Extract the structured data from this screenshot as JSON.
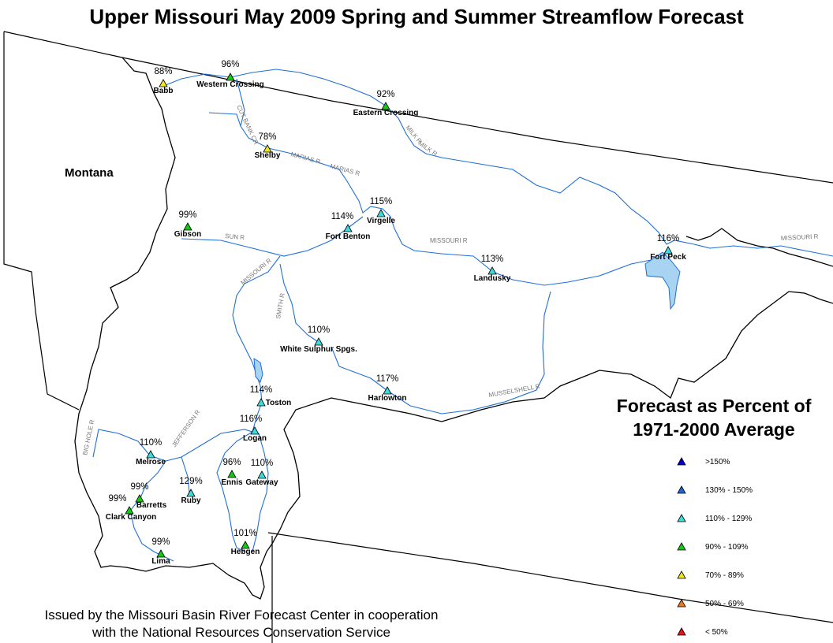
{
  "title": "Upper Missouri May 2009 Spring and Summer Streamflow Forecast",
  "state_label": "Montana",
  "legend": {
    "title_line1": "Forecast as Percent of",
    "title_line2": "1971-2000 Average",
    "classes": [
      {
        "label": ">150%",
        "color": "#0000c8"
      },
      {
        "label": "130% - 150%",
        "color": "#1e64dc"
      },
      {
        "label": "110% - 129%",
        "color": "#3cdcdc"
      },
      {
        "label": "90% - 109%",
        "color": "#14c814"
      },
      {
        "label": "70% - 89%",
        "color": "#f0e61e"
      },
      {
        "label": "50% - 69%",
        "color": "#f07814"
      },
      {
        "label": "< 50%",
        "color": "#e61414"
      }
    ]
  },
  "issued_line1": "Issued by the Missouri Basin River Forecast Center in cooperation",
  "issued_line2": "with the National Resources Conservation Service",
  "rivers": [
    "CUT BANK CR",
    "MILK R",
    "MILK R",
    "MARIAS R",
    "MARIAS R",
    "SUN R",
    "MISSOURI R",
    "MISSOURI R",
    "MISSOURI R",
    "SMITH R",
    "MUSSELSHELL R",
    "JEFFERSON R",
    "BIG HOLE R"
  ],
  "stations": [
    {
      "name": "Babb",
      "percent": "88%",
      "color": "#f0e61e"
    },
    {
      "name": "Western Crossing",
      "percent": "96%",
      "color": "#14c814"
    },
    {
      "name": "Eastern Crossing",
      "percent": "92%",
      "color": "#14c814"
    },
    {
      "name": "Shelby",
      "percent": "78%",
      "color": "#f0e61e"
    },
    {
      "name": "Virgelle",
      "percent": "115%",
      "color": "#3cdcdc"
    },
    {
      "name": "Fort Benton",
      "percent": "114%",
      "color": "#3cdcdc"
    },
    {
      "name": "Gibson",
      "percent": "99%",
      "color": "#14c814"
    },
    {
      "name": "Fort Peck",
      "percent": "116%",
      "color": "#3cdcdc"
    },
    {
      "name": "Landusky",
      "percent": "113%",
      "color": "#3cdcdc"
    },
    {
      "name": "White Sulphur Spgs.",
      "percent": "110%",
      "color": "#3cdcdc"
    },
    {
      "name": "Harlowton",
      "percent": "117%",
      "color": "#3cdcdc"
    },
    {
      "name": "Toston",
      "percent": "114%",
      "color": "#3cdcdc"
    },
    {
      "name": "Logan",
      "percent": "116%",
      "color": "#3cdcdc"
    },
    {
      "name": "Melrose",
      "percent": "110%",
      "color": "#3cdcdc"
    },
    {
      "name": "Ennis",
      "percent": "96%",
      "color": "#14c814"
    },
    {
      "name": "Gateway",
      "percent": "110%",
      "color": "#3cdcdc"
    },
    {
      "name": "Ruby",
      "percent": "129%",
      "color": "#3cdcdc"
    },
    {
      "name": "Barretts",
      "percent": "99%",
      "color": "#14c814"
    },
    {
      "name": "Clark Canyon",
      "percent": "99%",
      "color": "#14c814"
    },
    {
      "name": "Lima",
      "percent": "99%",
      "color": "#14c814"
    },
    {
      "name": "Hebgen",
      "percent": "101%",
      "color": "#14c814"
    }
  ]
}
